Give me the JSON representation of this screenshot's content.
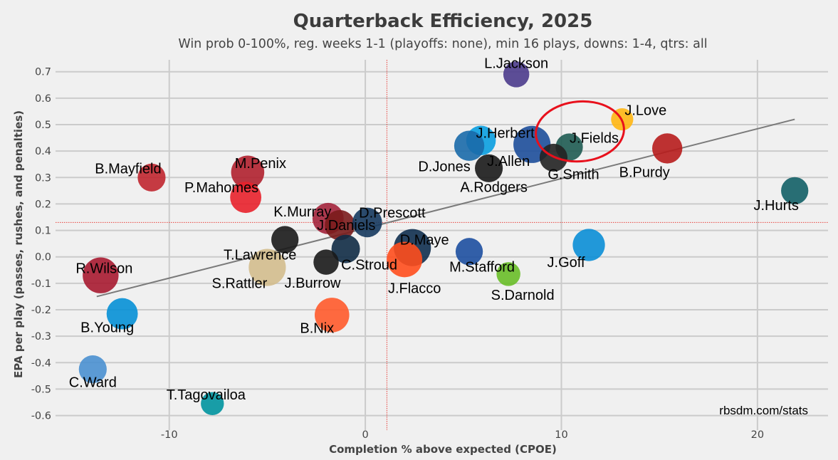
{
  "chart_data": {
    "type": "scatter",
    "title": "Quarterback Efficiency, 2025",
    "subtitle": "Win prob 0-100%, reg. weeks 1-1 (playoffs: none), min 16 plays, downs: 1-4, qtrs: all",
    "xlabel": "Completion % above expected (CPOE)",
    "ylabel": "EPA per play (passes, rushes, and penalties)",
    "xlim": [
      -15.8,
      23.6
    ],
    "ylim": [
      -0.655,
      0.745
    ],
    "xticks": [
      -10,
      0,
      10,
      20
    ],
    "yticks": [
      -0.6,
      -0.5,
      -0.4,
      -0.3,
      -0.2,
      -0.1,
      0.0,
      0.1,
      0.2,
      0.3,
      0.4,
      0.5,
      0.6,
      0.7
    ],
    "ytick_labels": [
      "-0.6",
      "-0.5",
      "-0.4",
      "-0.3",
      "-0.2",
      "-0.1",
      "0.0",
      "0.1",
      "0.2",
      "0.3",
      "0.4",
      "0.5",
      "0.6",
      "0.7"
    ],
    "xtick_labels": [
      "-10",
      "0",
      "10",
      "20"
    ],
    "mean_x": 1.1,
    "mean_y": 0.13,
    "trend_line": {
      "x": [
        -13.7,
        21.9
      ],
      "y": [
        -0.15,
        0.52
      ]
    },
    "source": "rbsdm.com/stats",
    "annotation": {
      "type": "ellipse",
      "target": "J.Fields",
      "color": "#e8101c"
    },
    "points": [
      {
        "name": "L.Jackson",
        "x": 7.7,
        "y": 0.69,
        "plays": 26,
        "color": "#4b3b8c"
      },
      {
        "name": "J.Love",
        "x": 13.1,
        "y": 0.52,
        "plays": 16,
        "color": "#ffb612"
      },
      {
        "name": "J.Herbert",
        "x": 5.9,
        "y": 0.44,
        "plays": 38,
        "color": "#0a9fe0"
      },
      {
        "name": "D.Jones",
        "x": 5.3,
        "y": 0.42,
        "plays": 40,
        "color": "#1a6aaa"
      },
      {
        "name": "J.Allen",
        "x": 8.5,
        "y": 0.425,
        "plays": 70,
        "color": "#1d4e9a"
      },
      {
        "name": "J.Fields",
        "x": 10.4,
        "y": 0.415,
        "plays": 30,
        "color": "#1e5b52"
      },
      {
        "name": "B.Purdy",
        "x": 15.4,
        "y": 0.41,
        "plays": 40,
        "color": "#b71c1c"
      },
      {
        "name": "G.Smith",
        "x": 9.6,
        "y": 0.375,
        "plays": 32,
        "color": "#222222"
      },
      {
        "name": "A.Rodgers",
        "x": 6.3,
        "y": 0.335,
        "plays": 32,
        "color": "#1a1a1a"
      },
      {
        "name": "J.Hurts",
        "x": 21.9,
        "y": 0.25,
        "plays": 30,
        "color": "#125f66"
      },
      {
        "name": "B.Mayfield",
        "x": -10.9,
        "y": 0.3,
        "plays": 32,
        "color": "#c0262f"
      },
      {
        "name": "M.Penix",
        "x": -6.0,
        "y": 0.32,
        "plays": 52,
        "color": "#b0202d"
      },
      {
        "name": "P.Mahomes",
        "x": -6.1,
        "y": 0.225,
        "plays": 44,
        "color": "#e8212b"
      },
      {
        "name": "K.Murray",
        "x": -1.9,
        "y": 0.145,
        "plays": 44,
        "color": "#a3243b"
      },
      {
        "name": "J.Daniels",
        "x": -1.3,
        "y": 0.12,
        "plays": 40,
        "color": "#7a1c1c"
      },
      {
        "name": "D.Prescott",
        "x": 0.1,
        "y": 0.13,
        "plays": 38,
        "color": "#15385e"
      },
      {
        "name": "T.Lawrence",
        "x": -4.1,
        "y": 0.065,
        "plays": 30,
        "color": "#1a1a1a"
      },
      {
        "name": "D.Maye",
        "x": 2.4,
        "y": 0.035,
        "plays": 70,
        "color": "#0f2f4f"
      },
      {
        "name": "C.Stroud",
        "x": -1.0,
        "y": 0.03,
        "plays": 34,
        "color": "#0f2b45"
      },
      {
        "name": "J.Flacco",
        "x": 2.0,
        "y": -0.01,
        "plays": 62,
        "color": "#ff4e1d"
      },
      {
        "name": "J.Burrow",
        "x": -2.0,
        "y": -0.02,
        "plays": 24,
        "color": "#1a1a1a"
      },
      {
        "name": "S.Rattler",
        "x": -5.0,
        "y": -0.04,
        "plays": 70,
        "color": "#d3bc8d"
      },
      {
        "name": "M.Stafford",
        "x": 5.3,
        "y": 0.02,
        "plays": 30,
        "color": "#1d4fa0"
      },
      {
        "name": "J.Goff",
        "x": 11.4,
        "y": 0.045,
        "plays": 48,
        "color": "#0a8ed6"
      },
      {
        "name": "S.Darnold",
        "x": 7.3,
        "y": -0.065,
        "plays": 20,
        "color": "#69be28"
      },
      {
        "name": "R.Wilson",
        "x": -13.5,
        "y": -0.07,
        "plays": 64,
        "color": "#a71930"
      },
      {
        "name": "B.Nix",
        "x": -1.7,
        "y": -0.22,
        "plays": 58,
        "color": "#ff5a2b"
      },
      {
        "name": "B.Young",
        "x": -12.4,
        "y": -0.215,
        "plays": 44,
        "color": "#0590d6"
      },
      {
        "name": "C.Ward",
        "x": -13.9,
        "y": -0.425,
        "plays": 32,
        "color": "#4a90d0"
      },
      {
        "name": "T.Tagovailoa",
        "x": -7.8,
        "y": -0.555,
        "plays": 18,
        "color": "#00949e"
      }
    ]
  }
}
